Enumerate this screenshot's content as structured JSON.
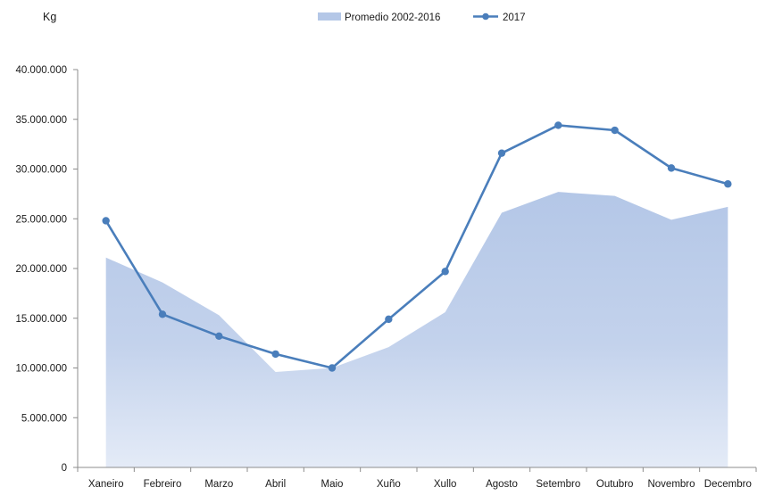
{
  "chart_data": {
    "type": "line",
    "ylabel": "Kg",
    "ylim": [
      0,
      40000000
    ],
    "y_ticks": [
      0,
      5000000,
      10000000,
      15000000,
      20000000,
      25000000,
      30000000,
      35000000,
      40000000
    ],
    "y_tick_labels": [
      "0",
      "5.000.000",
      "10.000.000",
      "15.000.000",
      "20.000.000",
      "25.000.000",
      "30.000.000",
      "35.000.000",
      "40.000.000"
    ],
    "categories": [
      "Xaneiro",
      "Febreiro",
      "Marzo",
      "Abril",
      "Maio",
      "Xuño",
      "Xullo",
      "Agosto",
      "Setembro",
      "Outubro",
      "Novembro",
      "Decembro"
    ],
    "series": [
      {
        "name": "Promedio 2002-2016",
        "type": "area",
        "color": "#b4c7e7",
        "values": [
          21100000,
          18600000,
          15300000,
          9600000,
          10000000,
          12100000,
          15600000,
          25600000,
          27700000,
          27300000,
          24900000,
          26200000
        ]
      },
      {
        "name": "2017",
        "type": "line",
        "color": "#4a7ebb",
        "values": [
          24800000,
          15400000,
          13200000,
          11400000,
          10000000,
          14900000,
          19700000,
          31600000,
          34400000,
          33900000,
          30100000,
          28500000
        ]
      }
    ],
    "grid": false,
    "legend_position": "top-center"
  }
}
